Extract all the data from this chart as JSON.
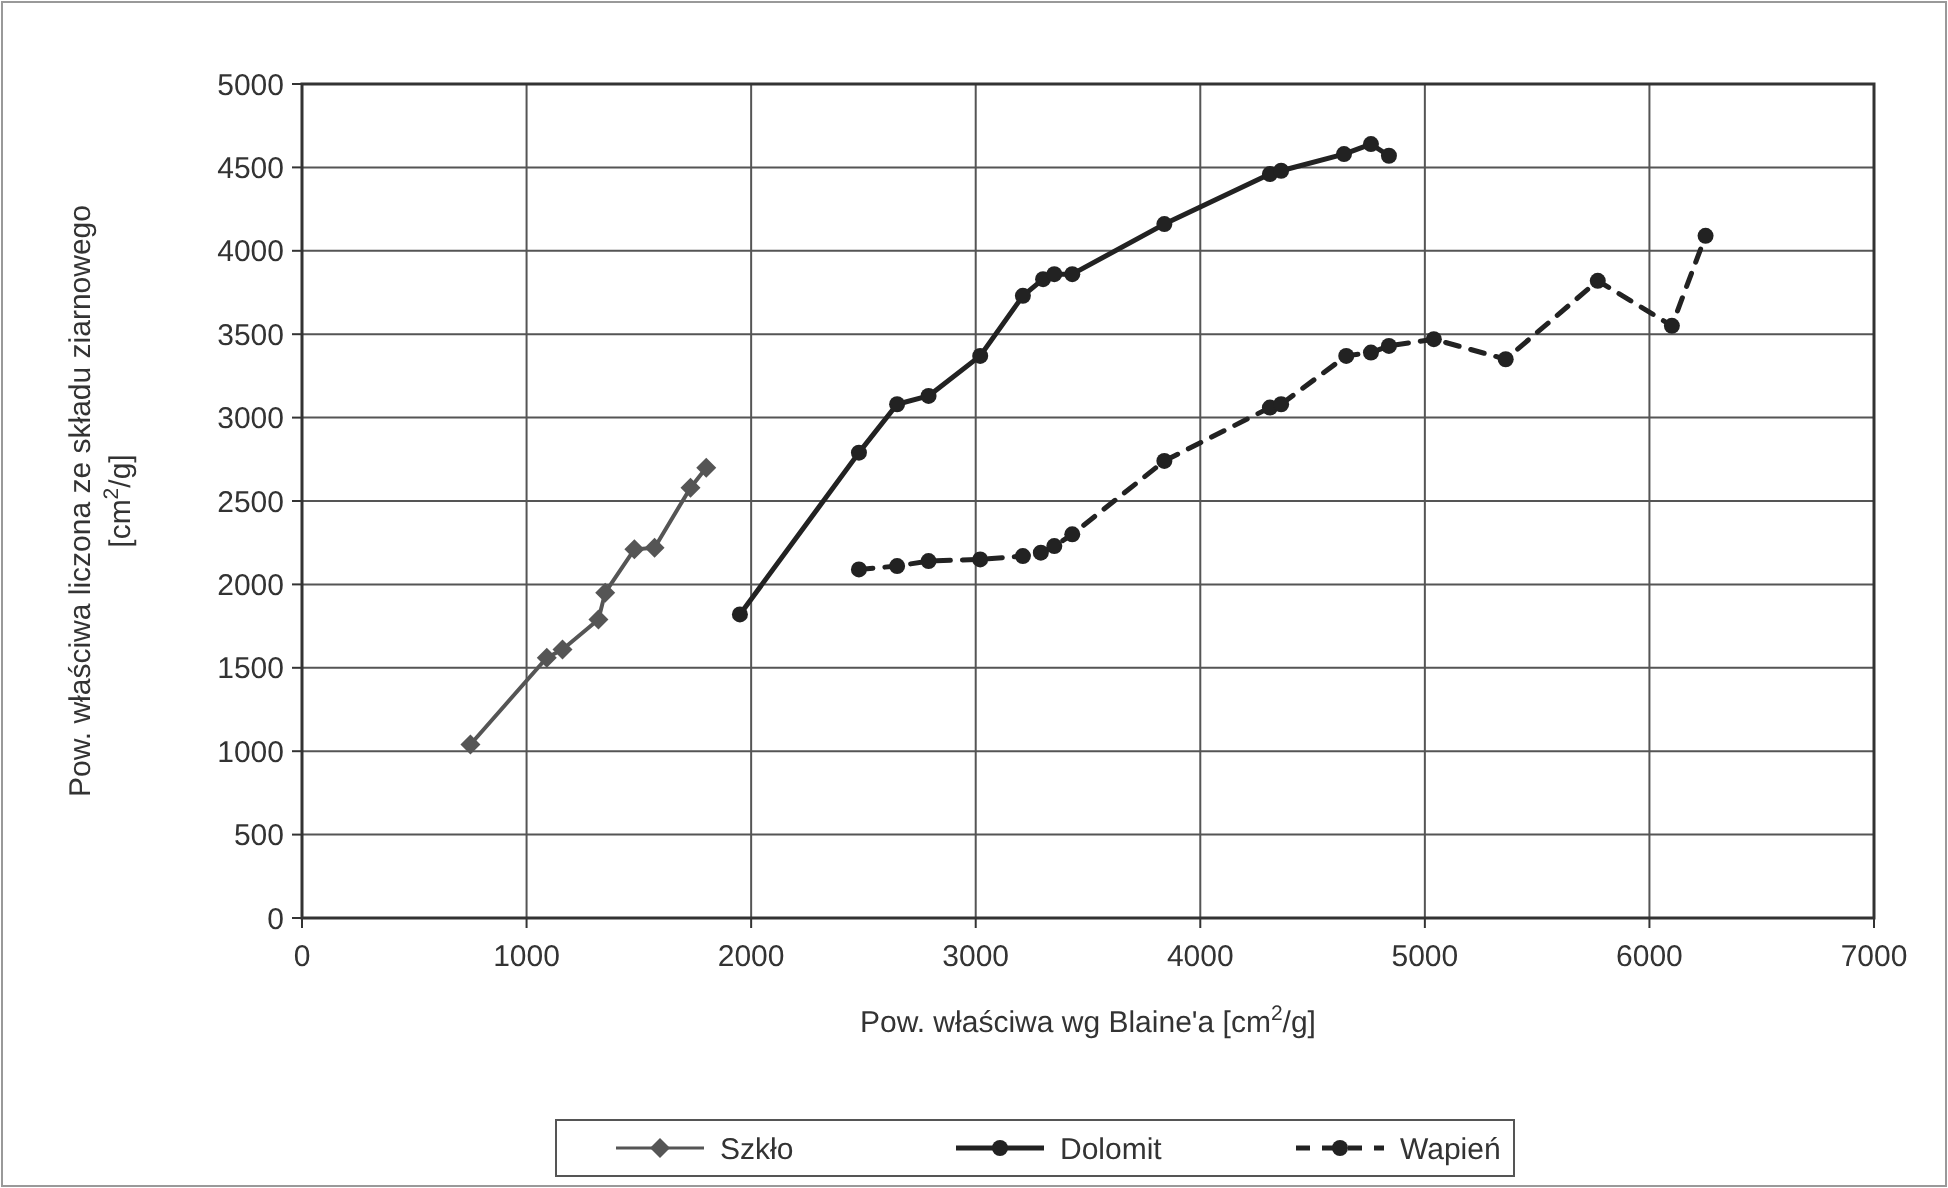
{
  "chart_data": {
    "type": "line",
    "xlabel": "Pow. właściwa wg Blaine'a [cm$^{2}$/g]",
    "ylabel": "Pow. właściwa liczona ze składu ziarnowego [cm$^{2}$/g]",
    "xlim": [
      0,
      7000
    ],
    "xticks": [
      0,
      1000,
      2000,
      3000,
      4000,
      5000,
      6000,
      7000
    ],
    "ylim": [
      0,
      5000
    ],
    "yticks": [
      0,
      500,
      1000,
      1500,
      2000,
      2500,
      3000,
      3500,
      4000,
      4500,
      5000
    ],
    "grid": true,
    "legend": "bottom",
    "series": [
      {
        "name": "Szkło",
        "color": "#555555",
        "marker": "diamond",
        "line_style": "solid",
        "x": [
          750,
          1090,
          1160,
          1320,
          1350,
          1480,
          1570,
          1730,
          1800
        ],
        "values": [
          1040,
          1560,
          1610,
          1790,
          1950,
          2210,
          2220,
          2580,
          2700
        ]
      },
      {
        "name": "Dolomit",
        "color": "#222222",
        "marker": "circle",
        "line_style": "solid",
        "x": [
          1950,
          2480,
          2650,
          2790,
          3020,
          3210,
          3300,
          3350,
          3430,
          3840,
          4310,
          4360,
          4640,
          4760,
          4840
        ],
        "values": [
          1820,
          2790,
          3080,
          3130,
          3370,
          3730,
          3830,
          3860,
          3860,
          4160,
          4460,
          4480,
          4580,
          4640,
          4570
        ]
      },
      {
        "name": "Wapień",
        "color": "#222222",
        "marker": "circle",
        "line_style": "dashed",
        "x": [
          2480,
          2650,
          2790,
          3020,
          3210,
          3290,
          3350,
          3430,
          3840,
          4310,
          4360,
          4650,
          4760,
          4840,
          5040,
          5360,
          5770,
          6100,
          6250
        ],
        "values": [
          2090,
          2110,
          2140,
          2150,
          2170,
          2190,
          2230,
          2300,
          2740,
          3060,
          3080,
          3370,
          3390,
          3430,
          3470,
          3350,
          3820,
          3550,
          4090
        ]
      }
    ]
  }
}
